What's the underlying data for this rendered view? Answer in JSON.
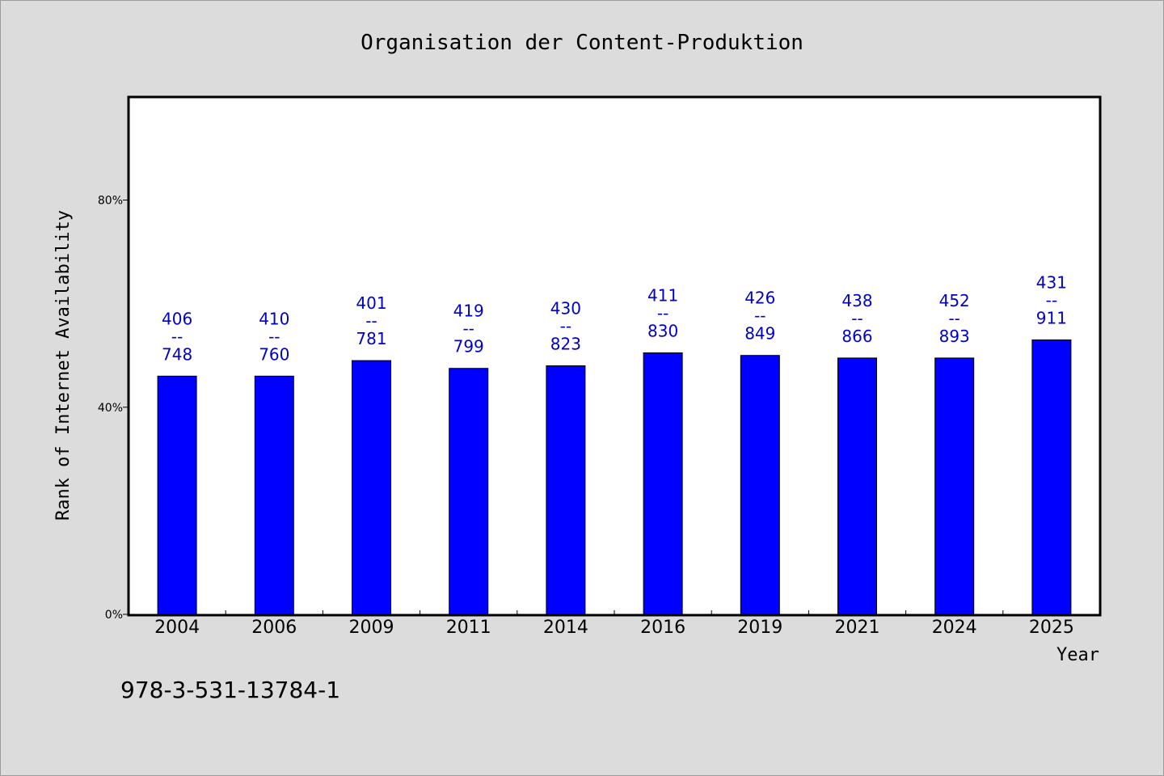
{
  "chart_data": {
    "type": "bar",
    "title": "Organisation der Content-Produktion",
    "xlabel": "Year",
    "ylabel": "Rank of Internet Availability",
    "categories": [
      "2004",
      "2006",
      "2009",
      "2011",
      "2014",
      "2016",
      "2019",
      "2021",
      "2024",
      "2025"
    ],
    "values": [
      46,
      46,
      49,
      47.5,
      48,
      50.5,
      50,
      49.5,
      49.5,
      53
    ],
    "data_labels": [
      [
        "406",
        "--",
        "748"
      ],
      [
        "410",
        "--",
        "760"
      ],
      [
        "401",
        "--",
        "781"
      ],
      [
        "419",
        "--",
        "799"
      ],
      [
        "430",
        "--",
        "823"
      ],
      [
        "411",
        "--",
        "830"
      ],
      [
        "426",
        "--",
        "849"
      ],
      [
        "438",
        "--",
        "866"
      ],
      [
        "452",
        "--",
        "893"
      ],
      [
        "431",
        "--",
        "911"
      ]
    ],
    "yticks": [
      0,
      40,
      80
    ],
    "ytick_labels": [
      "0%",
      "40%",
      "80%"
    ],
    "ylim": [
      0,
      100
    ],
    "grid": false,
    "bar_color": "#0000ff",
    "label_color": "#0000cc",
    "plot_background": "#ffffff",
    "page_background": "#dcdcdc"
  },
  "footnote": "978-3-531-13784-1"
}
